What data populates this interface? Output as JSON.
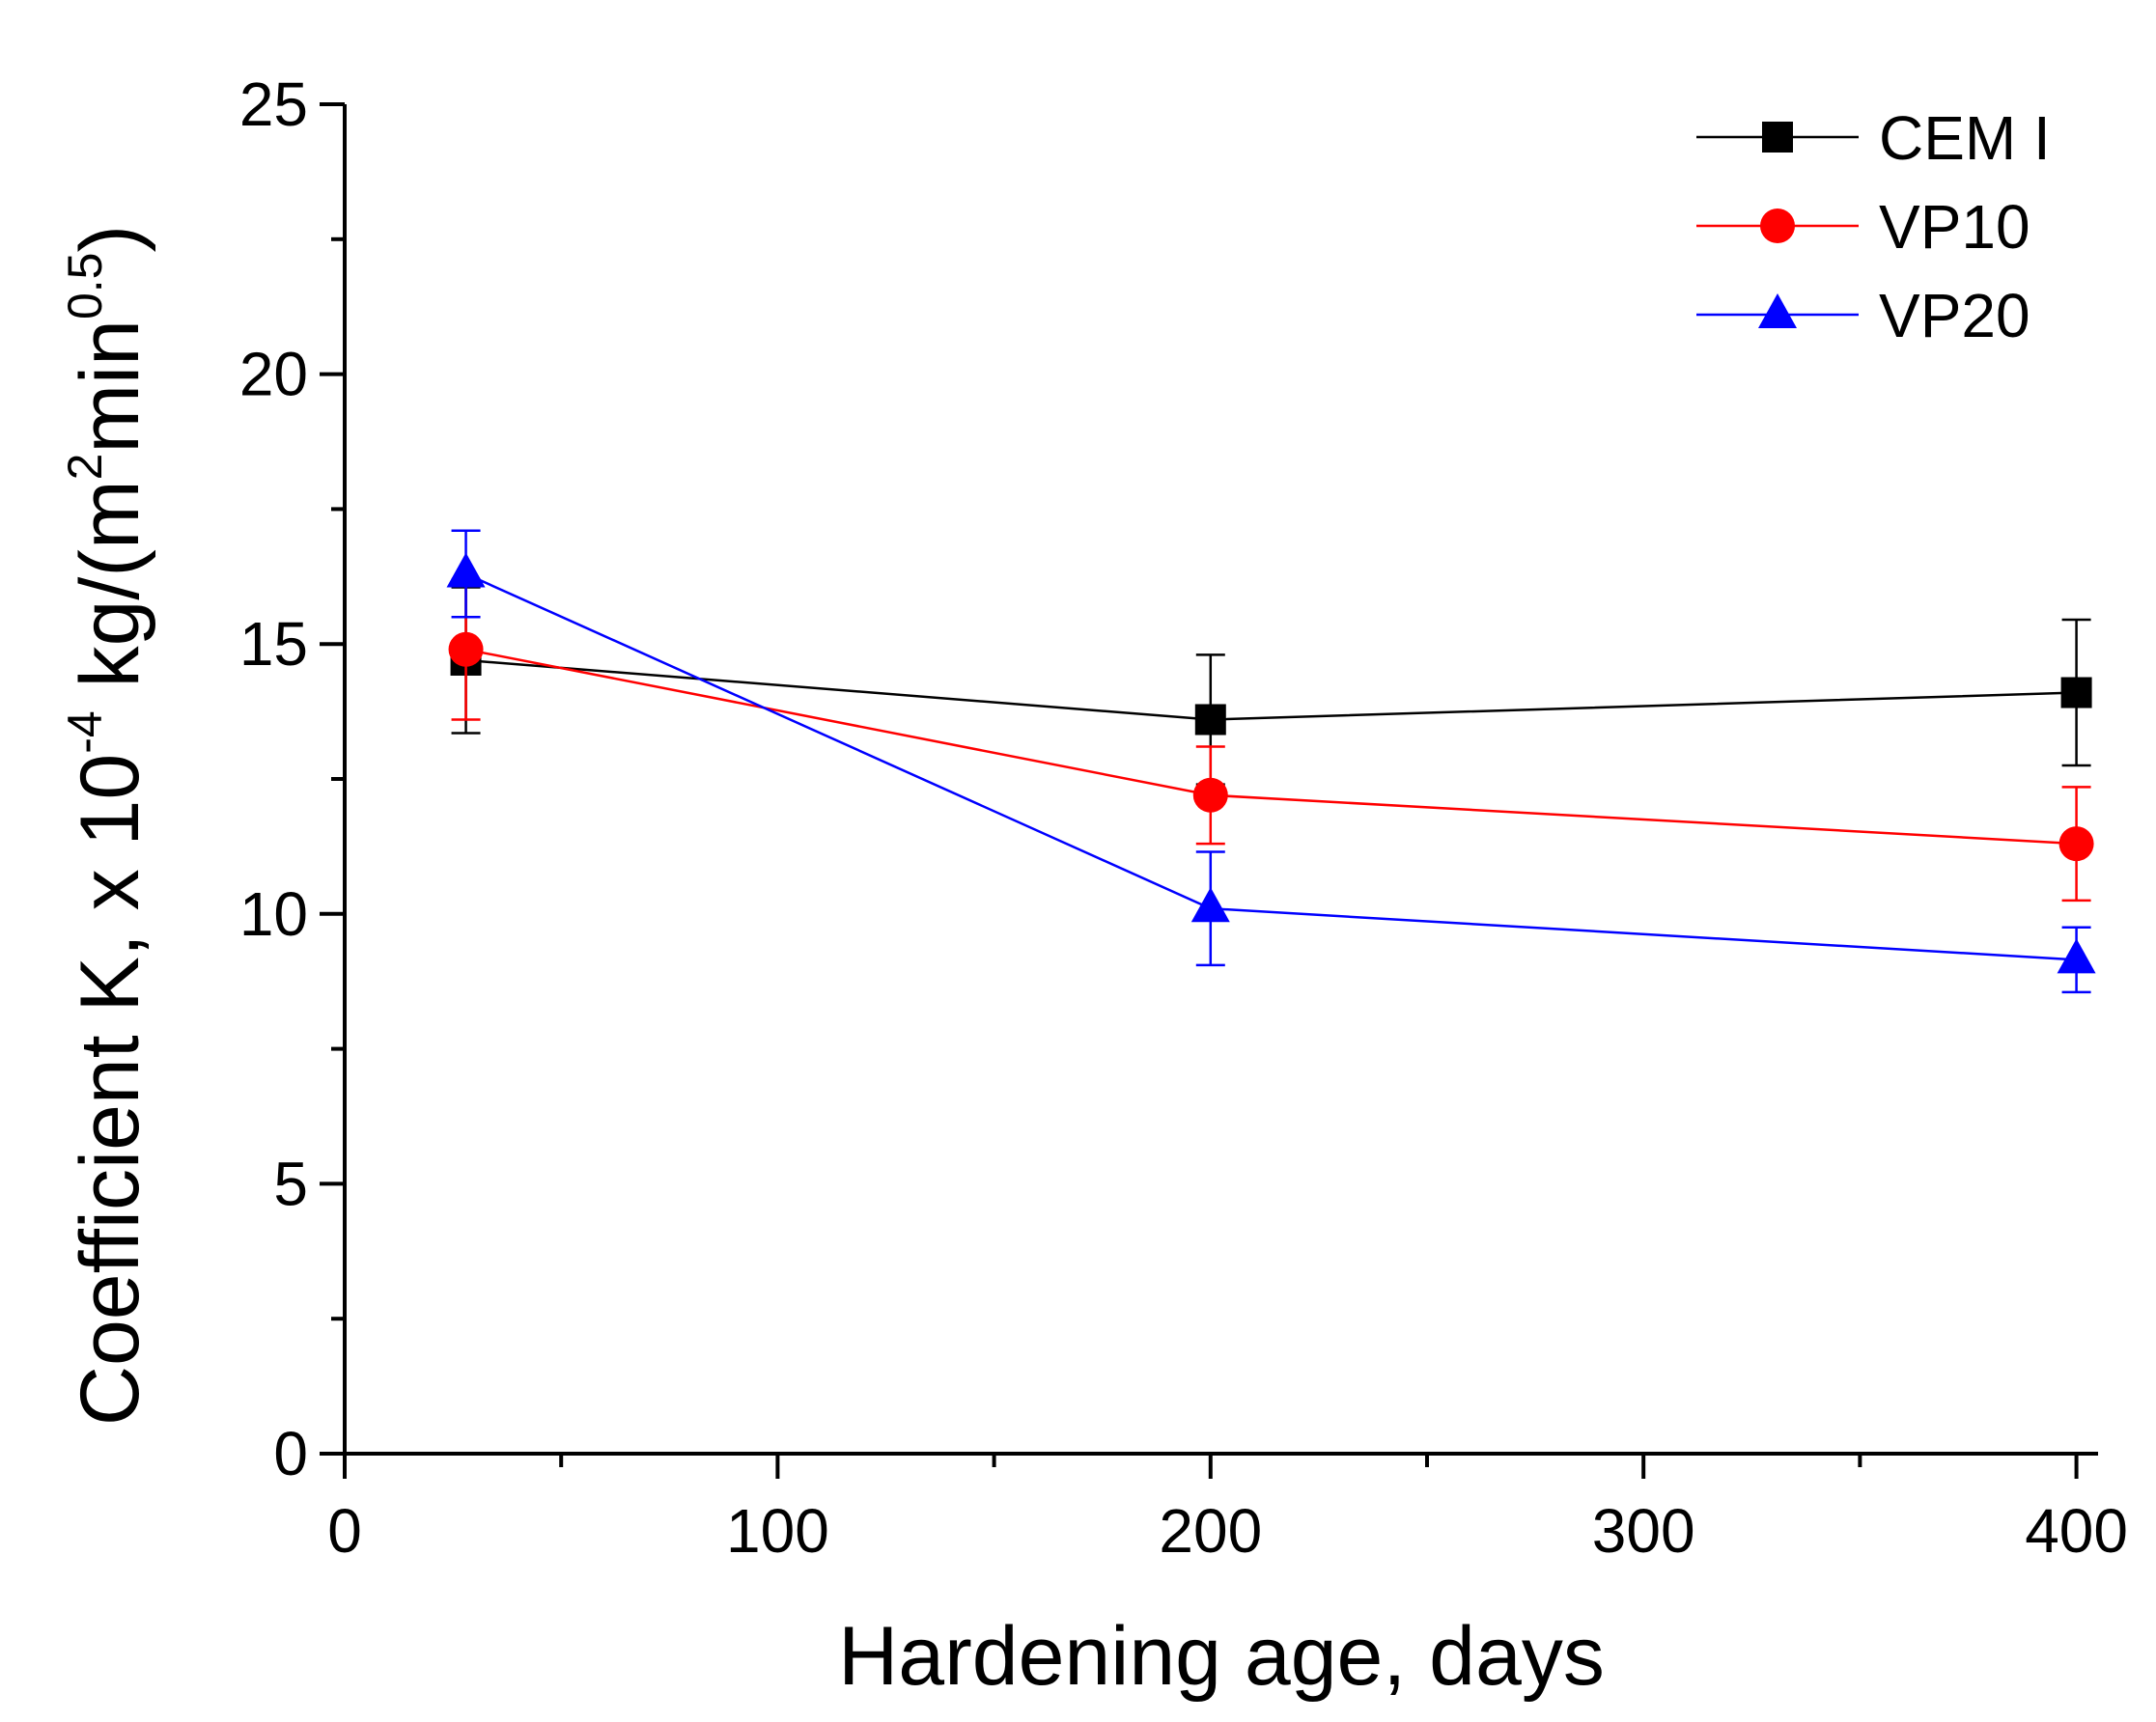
{
  "chart_data": {
    "type": "line",
    "xlabel": "Hardening age, days",
    "ylabel": {
      "main": "Coefficient K, x 10",
      "exp1": "-4",
      "mid": " kg/(m",
      "exp2": "2",
      "mid2": "min",
      "exp3": "0.5",
      "end": ")"
    },
    "xlim": [
      0,
      405
    ],
    "ylim": [
      0,
      25
    ],
    "xticks": [
      0,
      100,
      200,
      300,
      400
    ],
    "xticks_minor": [
      50,
      150,
      250,
      350
    ],
    "yticks": [
      0,
      5,
      10,
      15,
      20,
      25
    ],
    "yticks_minor": [
      2.5,
      7.5,
      12.5,
      17.5,
      22.5
    ],
    "xtick_labels": [
      "0",
      "100",
      "200",
      "300",
      "400"
    ],
    "ytick_labels": [
      "0",
      "5",
      "10",
      "15",
      "20",
      "25"
    ],
    "grid": false,
    "legend_position": "top-right",
    "series": [
      {
        "name": "CEM I",
        "color": "#000000",
        "marker": "square",
        "x": [
          28,
          200,
          400
        ],
        "y": [
          14.7,
          13.6,
          14.1
        ],
        "err": [
          1.35,
          1.2,
          1.35
        ]
      },
      {
        "name": "VP10",
        "color": "#ff0000",
        "marker": "circle",
        "x": [
          28,
          200,
          400
        ],
        "y": [
          14.9,
          12.2,
          11.3
        ],
        "err": [
          1.3,
          0.9,
          1.05
        ]
      },
      {
        "name": "VP20",
        "color": "#0000ff",
        "marker": "triangle",
        "x": [
          28,
          200,
          400
        ],
        "y": [
          16.3,
          10.1,
          9.15
        ],
        "err": [
          0.8,
          1.05,
          0.6
        ]
      }
    ]
  }
}
